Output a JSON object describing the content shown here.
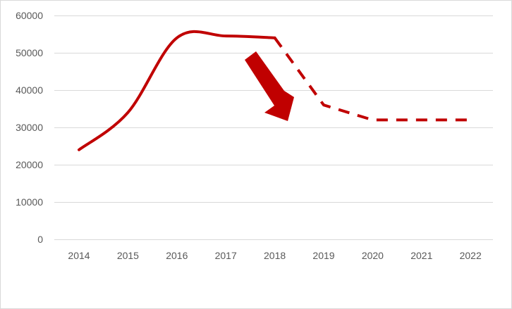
{
  "chart_data": {
    "type": "line",
    "title": "",
    "xlabel": "",
    "ylabel": "",
    "categories": [
      "2014",
      "2015",
      "2016",
      "2017",
      "2018",
      "2019",
      "2020",
      "2021",
      "2022"
    ],
    "ylim": [
      0,
      60000
    ],
    "yticks": [
      0,
      10000,
      20000,
      30000,
      40000,
      50000,
      60000
    ],
    "grid": true,
    "legend": "none",
    "series": [
      {
        "style": "solid",
        "color": "#c00000",
        "x": [
          "2014",
          "2015",
          "2016",
          "2017",
          "2018"
        ],
        "values": [
          24000,
          34000,
          54000,
          54500,
          54000
        ]
      },
      {
        "style": "dashed",
        "color": "#c00000",
        "x": [
          "2018",
          "2019",
          "2020",
          "2021",
          "2022"
        ],
        "values": [
          54000,
          36000,
          32000,
          32000,
          32000
        ]
      }
    ],
    "annotations": [
      {
        "type": "arrow",
        "direction": "down-right",
        "color": "#c00000"
      }
    ]
  }
}
